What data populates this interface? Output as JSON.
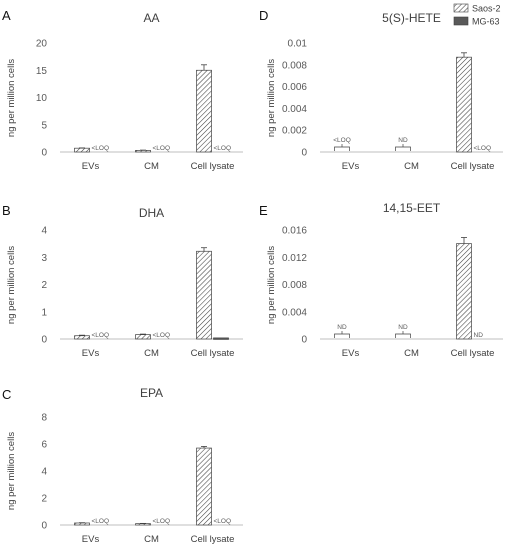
{
  "legend": [
    {
      "name": "Saos-2",
      "pattern": "hatch",
      "color": "#595959"
    },
    {
      "name": "MG-63",
      "pattern": "solid",
      "color": "#595959"
    }
  ],
  "colors": {
    "axis": "#bfbfbf",
    "bar_stroke": "#404040",
    "hatch": "#404040",
    "mg63_fill": "#595959",
    "text": "#404040"
  },
  "chart_data": [
    {
      "letter": "A",
      "type": "bar",
      "title": "AA",
      "ylabel": "ng per million cells",
      "categories": [
        "EVs",
        "CM",
        "Cell lysate"
      ],
      "ylim": [
        0,
        20
      ],
      "yticks": [
        0,
        5,
        10,
        15,
        20
      ],
      "ytick_labels": [
        "0",
        "5",
        "10",
        "15",
        "20"
      ],
      "series": [
        {
          "name": "Saos-2",
          "values": [
            0.7,
            0.3,
            15.0
          ],
          "errors": [
            0.05,
            0.05,
            1.0
          ]
        },
        {
          "name": "MG-63",
          "values": [
            0,
            0,
            0
          ]
        }
      ],
      "annotations": [
        {
          "category": "EVs",
          "text": "<LOQ",
          "type": "note"
        },
        {
          "category": "CM",
          "text": "<LOQ",
          "type": "note"
        },
        {
          "category": "Cell lysate",
          "text": "<LOQ",
          "type": "note"
        }
      ]
    },
    {
      "letter": "B",
      "type": "bar",
      "title": "DHA",
      "ylabel": "ng per million cells",
      "categories": [
        "EVs",
        "CM",
        "Cell lysate"
      ],
      "ylim": [
        0,
        4
      ],
      "yticks": [
        0,
        1,
        2,
        3,
        4
      ],
      "ytick_labels": [
        "0",
        "1",
        "2",
        "3",
        "4"
      ],
      "series": [
        {
          "name": "Saos-2",
          "values": [
            0.12,
            0.16,
            3.22
          ],
          "errors": [
            0.02,
            0.02,
            0.13
          ]
        },
        {
          "name": "MG-63",
          "values": [
            0,
            0,
            0.04
          ],
          "errors": [
            0,
            0,
            0.01
          ]
        }
      ],
      "annotations": [
        {
          "category": "EVs",
          "text": "<LOQ",
          "type": "note"
        },
        {
          "category": "CM",
          "text": "<LOQ",
          "type": "note"
        }
      ]
    },
    {
      "letter": "C",
      "type": "bar",
      "title": "EPA",
      "ylabel": "ng per million cells",
      "categories": [
        "EVs",
        "CM",
        "Cell lysate"
      ],
      "ylim": [
        0,
        8
      ],
      "yticks": [
        0,
        2,
        4,
        6,
        8
      ],
      "ytick_labels": [
        "0",
        "2",
        "4",
        "6",
        "8"
      ],
      "series": [
        {
          "name": "Saos-2",
          "values": [
            0.15,
            0.1,
            5.7
          ],
          "errors": [
            0.02,
            0.02,
            0.12
          ]
        },
        {
          "name": "MG-63",
          "values": [
            0,
            0,
            0
          ]
        }
      ],
      "annotations": [
        {
          "category": "EVs",
          "text": "<LOQ",
          "type": "note"
        },
        {
          "category": "CM",
          "text": "<LOQ",
          "type": "note"
        },
        {
          "category": "Cell lysate",
          "text": "<LOQ",
          "type": "note"
        }
      ]
    },
    {
      "letter": "D",
      "type": "bar",
      "title": "5(S)-HETE",
      "ylabel": "ng per million cells",
      "categories": [
        "EVs",
        "CM",
        "Cell lysate"
      ],
      "ylim": [
        0,
        0.01
      ],
      "yticks": [
        0,
        0.002,
        0.004,
        0.006,
        0.008,
        0.01
      ],
      "ytick_labels": [
        "0",
        "0.002",
        "0.004",
        "0.006",
        "0.008",
        "0.01"
      ],
      "series": [
        {
          "name": "Saos-2",
          "values": [
            0,
            0,
            0.0087
          ],
          "errors": [
            0,
            0,
            0.0004
          ]
        },
        {
          "name": "MG-63",
          "values": [
            0,
            0,
            0
          ]
        }
      ],
      "annotations": [
        {
          "category": "EVs",
          "text": "<LOQ",
          "type": "bracket"
        },
        {
          "category": "CM",
          "text": "ND",
          "type": "bracket"
        },
        {
          "category": "Cell lysate",
          "text": "<LOQ",
          "type": "note"
        }
      ]
    },
    {
      "letter": "E",
      "type": "bar",
      "title": "14,15-EET",
      "ylabel": "ng per million cells",
      "categories": [
        "EVs",
        "CM",
        "Cell lysate"
      ],
      "ylim": [
        0,
        0.016
      ],
      "yticks": [
        0,
        0.004,
        0.008,
        0.012,
        0.016
      ],
      "ytick_labels": [
        "0",
        "0.004",
        "0.008",
        "0.012",
        "0.016"
      ],
      "series": [
        {
          "name": "Saos-2",
          "values": [
            0,
            0,
            0.014
          ],
          "errors": [
            0,
            0,
            0.0009
          ]
        },
        {
          "name": "MG-63",
          "values": [
            0,
            0,
            0
          ]
        }
      ],
      "annotations": [
        {
          "category": "EVs",
          "text": "ND",
          "type": "bracket"
        },
        {
          "category": "CM",
          "text": "ND",
          "type": "bracket"
        },
        {
          "category": "Cell lysate",
          "text": "ND",
          "type": "note"
        }
      ]
    }
  ]
}
